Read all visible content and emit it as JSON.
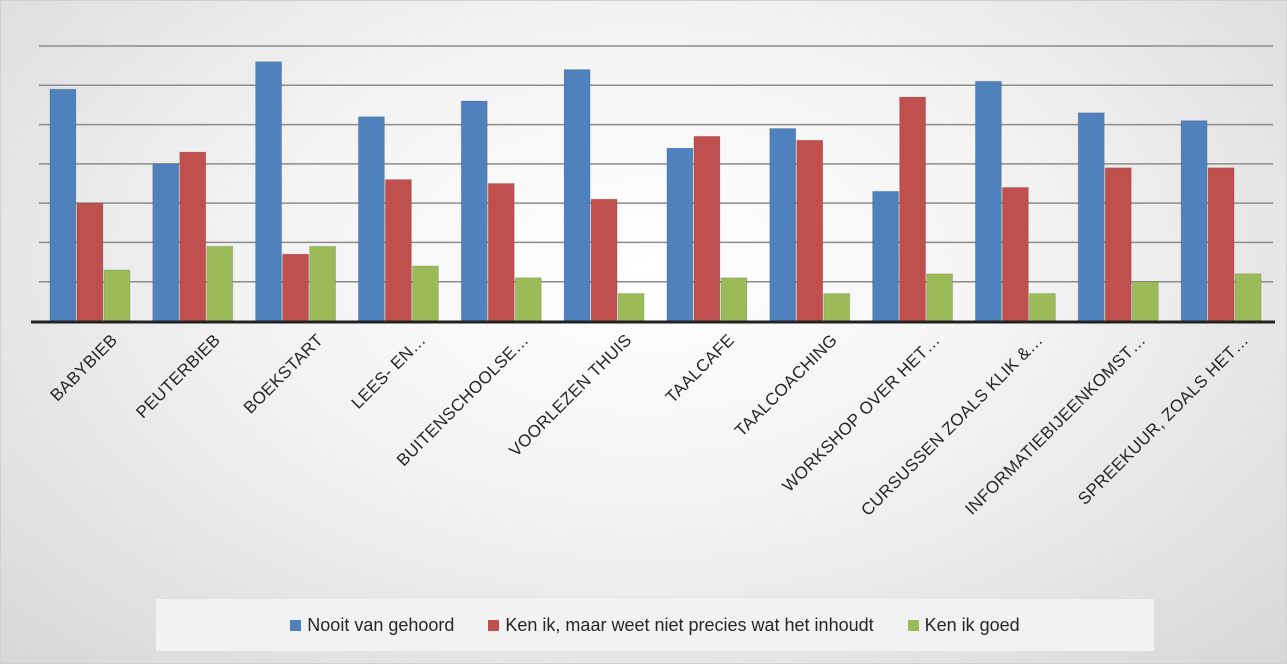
{
  "chart_data": {
    "type": "bar",
    "title": "",
    "xlabel": "",
    "ylabel": "",
    "ylim": [
      0,
      70
    ],
    "grid": true,
    "legend_position": "bottom",
    "categories": [
      "BABYBIEB",
      "PEUTERBIEB",
      "BOEKSTART",
      "LEES- EN…",
      "BUITENSCHOOLSE…",
      "VOORLEZEN THUIS",
      "TAALCAFE",
      "TAALCOACHING",
      "WORKSHOP OVER HET…",
      "CURSUSSEN ZOALS KLIK &…",
      "INFORMATIEBIJEENKOMST…",
      "SPREEKUUR, ZOALS HET…"
    ],
    "series": [
      {
        "name": "Nooit van gehoord",
        "color": "#4f81bd",
        "values": [
          59,
          40,
          66,
          52,
          56,
          64,
          44,
          49,
          33,
          61,
          53,
          51
        ]
      },
      {
        "name": "Ken ik, maar weet niet precies wat het inhoudt",
        "color": "#c0504d",
        "values": [
          30,
          43,
          17,
          36,
          35,
          31,
          47,
          46,
          57,
          34,
          39,
          39
        ]
      },
      {
        "name": "Ken ik goed",
        "color": "#9bbb59",
        "values": [
          13,
          19,
          19,
          14,
          11,
          7,
          11,
          7,
          12,
          7,
          10,
          12
        ]
      }
    ]
  }
}
